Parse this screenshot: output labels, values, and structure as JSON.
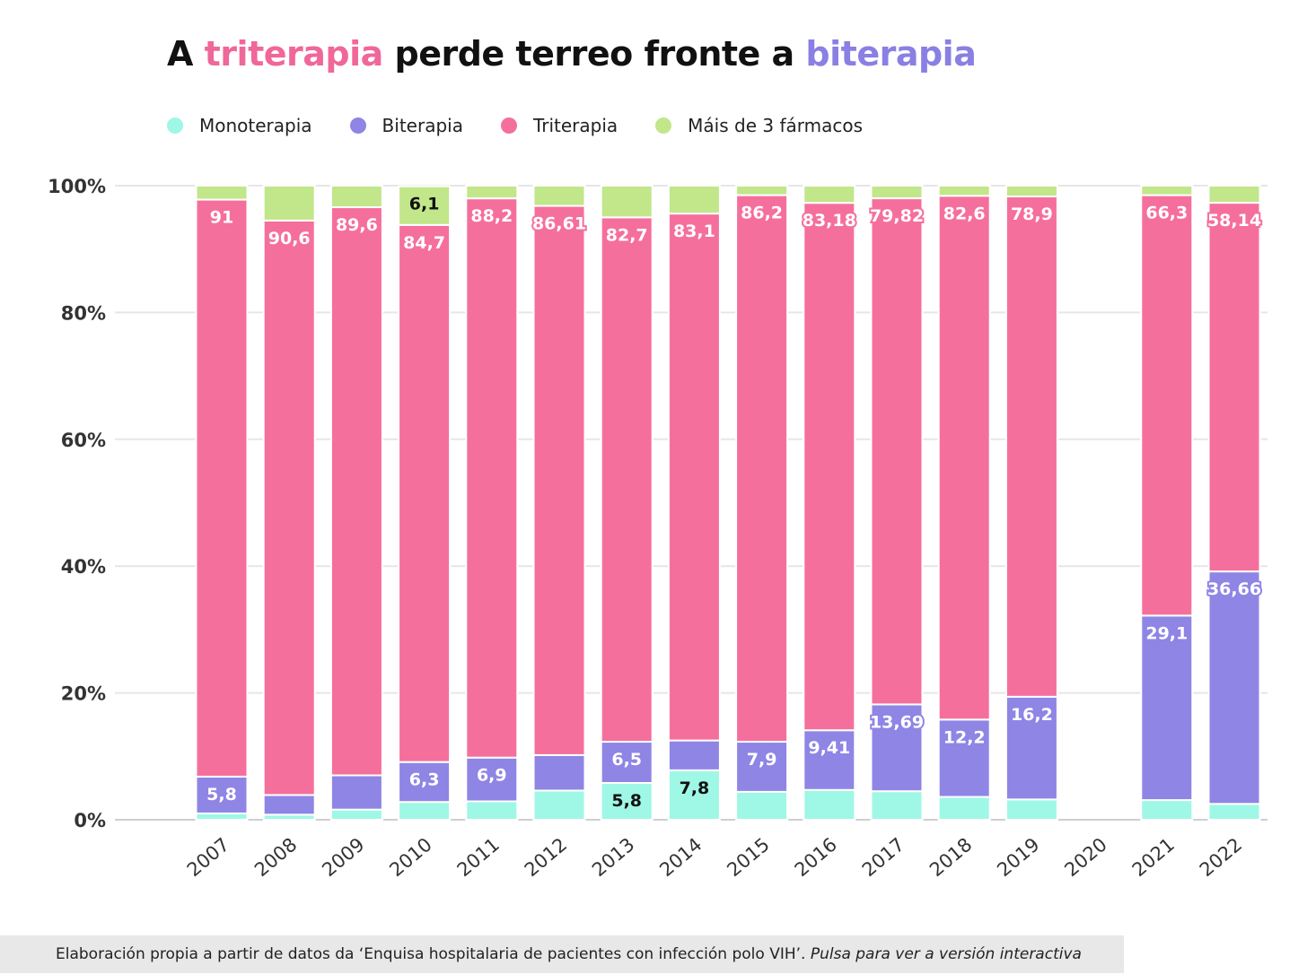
{
  "title": {
    "part1": "A ",
    "highlight1": "triterapia",
    "part2": " perde terreo fronte a ",
    "highlight2": "biterapia"
  },
  "legend": [
    {
      "label": "Monoterapia",
      "color": "#9ff7e6"
    },
    {
      "label": "Biterapia",
      "color": "#8f85e5"
    },
    {
      "label": "Triterapia",
      "color": "#f56f9c"
    },
    {
      "label": "Máis de 3 fármacos",
      "color": "#c2e68a"
    }
  ],
  "footer": {
    "source": "Elaboración propia a partir de datos da ‘Enquisa hospitalaria de pacientes con infección polo VIH’. ",
    "link": "Pulsa para ver a versión interactiva"
  },
  "chart_data": {
    "type": "bar",
    "stacked": true,
    "categories": [
      "2007",
      "2008",
      "2009",
      "2010",
      "2011",
      "2012",
      "2013",
      "2014",
      "2015",
      "2016",
      "2017",
      "2018",
      "2019",
      "2020",
      "2021",
      "2022"
    ],
    "ylim": [
      0,
      100
    ],
    "y_ticks": [
      "0%",
      "20%",
      "40%",
      "60%",
      "80%",
      "100%"
    ],
    "grid": true,
    "legend_position": "top",
    "series": [
      {
        "name": "Monoterapia",
        "color": "#9ff7e6",
        "values": [
          1.0,
          0.8,
          1.6,
          2.8,
          2.9,
          4.6,
          5.8,
          7.8,
          4.4,
          4.7,
          4.5,
          3.6,
          3.2,
          null,
          3.1,
          2.5
        ],
        "labels": [
          null,
          null,
          null,
          null,
          null,
          null,
          "5,8",
          "7,8",
          null,
          null,
          null,
          null,
          null,
          null,
          null,
          null
        ]
      },
      {
        "name": "Biterapia",
        "color": "#8f85e5",
        "values": [
          5.8,
          3.1,
          5.4,
          6.3,
          6.9,
          5.6,
          6.5,
          4.7,
          7.9,
          9.41,
          13.69,
          12.2,
          16.2,
          null,
          29.1,
          36.66
        ],
        "labels": [
          "5,8",
          null,
          null,
          "6,3",
          "6,9",
          null,
          "6,5",
          null,
          "7,9",
          "9,41",
          "13,69",
          "12,2",
          "16,2",
          null,
          "29,1",
          "36,66"
        ]
      },
      {
        "name": "Triterapia",
        "color": "#f56f9c",
        "values": [
          91,
          90.6,
          89.6,
          84.7,
          88.2,
          86.61,
          82.7,
          83.1,
          86.2,
          83.18,
          79.82,
          82.6,
          78.9,
          null,
          66.3,
          58.14
        ],
        "labels": [
          "91",
          "90,6",
          "89,6",
          "84,7",
          "88,2",
          "86,61",
          "82,7",
          "83,1",
          "86,2",
          "83,18",
          "79,82",
          "82,6",
          "78,9",
          null,
          "66,3",
          "58,14"
        ]
      },
      {
        "name": "Máis de 3 fármacos",
        "color": "#c2e68a",
        "values": [
          2.2,
          5.5,
          3.4,
          6.1,
          2.0,
          3.2,
          5.0,
          4.4,
          1.5,
          2.7,
          2.0,
          1.6,
          1.7,
          null,
          1.5,
          2.7
        ],
        "labels": [
          null,
          null,
          null,
          "6,1",
          null,
          null,
          null,
          null,
          null,
          null,
          null,
          null,
          null,
          null,
          null,
          null
        ]
      }
    ]
  }
}
